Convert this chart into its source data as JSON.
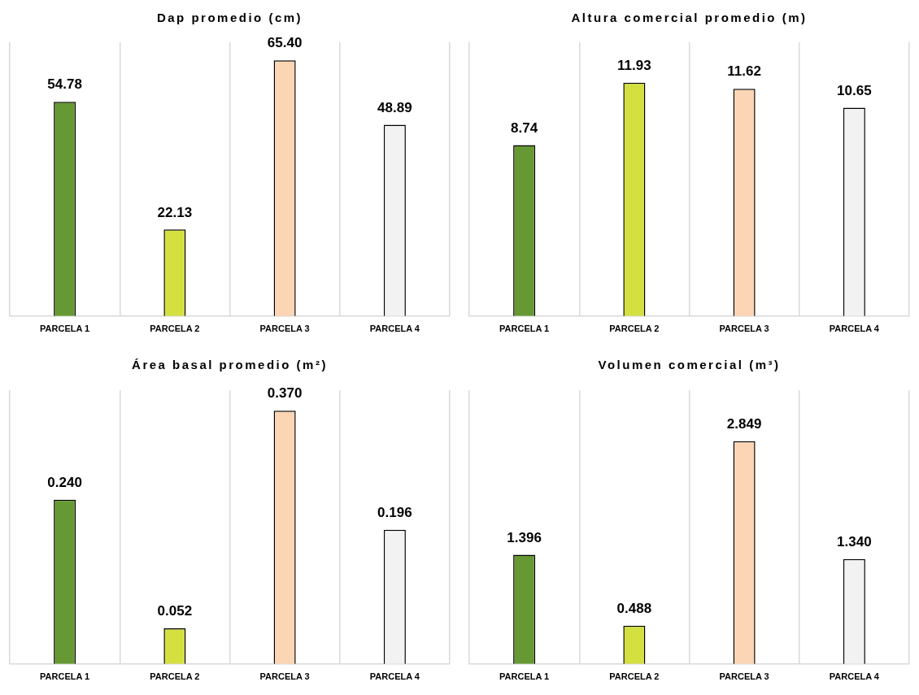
{
  "chart_data": [
    {
      "type": "bar",
      "title": "Dap promedio (cm)",
      "categories": [
        "PARCELA 1",
        "PARCELA 2",
        "PARCELA 3",
        "PARCELA 4"
      ],
      "values": [
        54.78,
        22.13,
        65.4,
        48.89
      ],
      "value_labels": [
        "54.78",
        "22.13",
        "65.40",
        "48.89"
      ],
      "colors": [
        "#669933",
        "#d4e040",
        "#fcd5b5",
        "#f2f2f2"
      ],
      "grid": "x"
    },
    {
      "type": "bar",
      "title": "Altura comercial promedio (m)",
      "categories": [
        "PARCELA 1",
        "PARCELA 2",
        "PARCELA 3",
        "PARCELA 4"
      ],
      "values": [
        8.74,
        11.93,
        11.62,
        10.65
      ],
      "value_labels": [
        "8.74",
        "11.93",
        "11.62",
        "10.65"
      ],
      "colors": [
        "#669933",
        "#d4e040",
        "#fcd5b5",
        "#f2f2f2"
      ],
      "grid": "x"
    },
    {
      "type": "bar",
      "title": "Área basal promedio (m²)",
      "categories": [
        "PARCELA 1",
        "PARCELA 2",
        "PARCELA 3",
        "PARCELA 4"
      ],
      "values": [
        0.24,
        0.052,
        0.37,
        0.196
      ],
      "value_labels": [
        "0.240",
        "0.052",
        "0.370",
        "0.196"
      ],
      "colors": [
        "#669933",
        "#d4e040",
        "#fcd5b5",
        "#f2f2f2"
      ],
      "grid": "x"
    },
    {
      "type": "bar",
      "title": "Volumen comercial (m³)",
      "categories": [
        "PARCELA 1",
        "PARCELA 2",
        "PARCELA 3",
        "PARCELA 4"
      ],
      "values": [
        1.396,
        0.488,
        2.849,
        1.34
      ],
      "value_labels": [
        "1.396",
        "0.488",
        "2.849",
        "1.340"
      ],
      "colors": [
        "#669933",
        "#d4e040",
        "#fcd5b5",
        "#f2f2f2"
      ],
      "grid": "x"
    }
  ]
}
